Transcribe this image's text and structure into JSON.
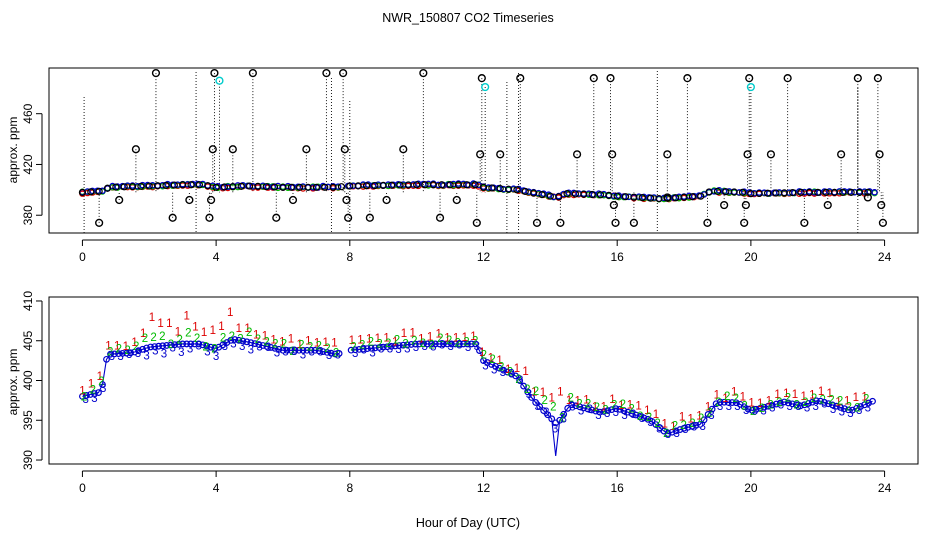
{
  "figure": {
    "title": "NWR_150807  CO2 Timeseries",
    "xlabel": "Hour of Day (UTC)"
  },
  "colors": {
    "axis": "#000000",
    "series1": "#dd0000",
    "series2": "#00bb00",
    "series3": "#0000cc",
    "flag": "#000000",
    "flag_alt": "#00cccc"
  },
  "chart_data": [
    {
      "type": "scatter",
      "panel": "top",
      "ylabel": "approx. ppm",
      "xlim": [
        -1,
        25
      ],
      "ylim": [
        366,
        496
      ],
      "xticks": [
        0,
        4,
        8,
        12,
        16,
        20,
        24
      ],
      "yticks": [
        380,
        420,
        460
      ],
      "xtick_labels": [
        "0",
        "4",
        "8",
        "12",
        "16",
        "20",
        "24"
      ],
      "ytick_labels": [
        "380",
        "420",
        "460"
      ],
      "series_base": [
        [
          0.0,
          398
        ],
        [
          0.6,
          399
        ],
        [
          0.8,
          402
        ],
        [
          2.0,
          403
        ],
        [
          3.0,
          404
        ],
        [
          3.6,
          404
        ],
        [
          4.0,
          402
        ],
        [
          5.0,
          403
        ],
        [
          6.0,
          402
        ],
        [
          7.5,
          402
        ],
        [
          8.0,
          403
        ],
        [
          10.0,
          404
        ],
        [
          11.8,
          404
        ],
        [
          12.0,
          402
        ],
        [
          13.0,
          400
        ],
        [
          13.6,
          397
        ],
        [
          14.2,
          394
        ],
        [
          14.5,
          397
        ],
        [
          15.6,
          396
        ],
        [
          16.0,
          395
        ],
        [
          17.3,
          393
        ],
        [
          18.5,
          395
        ],
        [
          18.8,
          399
        ],
        [
          19.8,
          398
        ],
        [
          20.0,
          397
        ],
        [
          21.5,
          398
        ],
        [
          23.7,
          398
        ]
      ],
      "flagged_points": [
        [
          0.5,
          374
        ],
        [
          1.1,
          392
        ],
        [
          1.6,
          432
        ],
        [
          2.2,
          492
        ],
        [
          2.7,
          378
        ],
        [
          3.2,
          392
        ],
        [
          3.8,
          378
        ],
        [
          3.85,
          392
        ],
        [
          3.9,
          432
        ],
        [
          3.95,
          492
        ],
        [
          4.1,
          486
        ],
        [
          4.5,
          432
        ],
        [
          5.1,
          492
        ],
        [
          5.8,
          378
        ],
        [
          6.3,
          392
        ],
        [
          6.7,
          432
        ],
        [
          7.3,
          492
        ],
        [
          7.8,
          492
        ],
        [
          7.85,
          432
        ],
        [
          7.9,
          392
        ],
        [
          7.95,
          378
        ],
        [
          8.6,
          378
        ],
        [
          9.1,
          392
        ],
        [
          9.6,
          432
        ],
        [
          10.2,
          492
        ],
        [
          10.7,
          378
        ],
        [
          11.2,
          392
        ],
        [
          11.8,
          374
        ],
        [
          11.9,
          428
        ],
        [
          11.95,
          488
        ],
        [
          12.05,
          481
        ],
        [
          12.5,
          428
        ],
        [
          13.1,
          488
        ],
        [
          13.6,
          374
        ],
        [
          14.3,
          374
        ],
        [
          14.8,
          428
        ],
        [
          15.3,
          488
        ],
        [
          15.8,
          488
        ],
        [
          15.85,
          428
        ],
        [
          15.9,
          388
        ],
        [
          15.95,
          374
        ],
        [
          16.5,
          374
        ],
        [
          17.5,
          428
        ],
        [
          17.5,
          394
        ],
        [
          18.1,
          488
        ],
        [
          18.7,
          374
        ],
        [
          19.2,
          388
        ],
        [
          19.8,
          374
        ],
        [
          19.85,
          388
        ],
        [
          19.9,
          428
        ],
        [
          19.95,
          488
        ],
        [
          20.0,
          481
        ],
        [
          20.6,
          428
        ],
        [
          21.1,
          488
        ],
        [
          21.6,
          374
        ],
        [
          22.3,
          388
        ],
        [
          22.7,
          428
        ],
        [
          23.2,
          488
        ],
        [
          23.5,
          394
        ],
        [
          23.8,
          488
        ],
        [
          23.85,
          428
        ],
        [
          23.9,
          388
        ],
        [
          23.95,
          374
        ]
      ]
    },
    {
      "type": "scatter",
      "panel": "bottom",
      "ylabel": "approx. ppm",
      "xlim": [
        -1,
        25
      ],
      "ylim": [
        389.5,
        410.5
      ],
      "xticks": [
        0,
        4,
        8,
        12,
        16,
        20,
        24
      ],
      "yticks": [
        390,
        395,
        400,
        405,
        410
      ],
      "xtick_labels": [
        "0",
        "4",
        "8",
        "12",
        "16",
        "20",
        "24"
      ],
      "ytick_labels": [
        "390",
        "395",
        "400",
        "405",
        "410"
      ],
      "series_names": [
        "1",
        "2",
        "3"
      ],
      "series_base": [
        [
          0.0,
          398.0
        ],
        [
          0.5,
          398.5
        ],
        [
          0.6,
          399.5
        ],
        [
          0.7,
          402.5
        ],
        [
          0.8,
          403.3
        ],
        [
          1.5,
          403.5
        ],
        [
          2.0,
          404.2
        ],
        [
          3.0,
          404.6
        ],
        [
          3.5,
          404.6
        ],
        [
          4.0,
          404.0
        ],
        [
          4.5,
          405.2
        ],
        [
          5.0,
          404.8
        ],
        [
          6.0,
          403.8
        ],
        [
          7.0,
          403.8
        ],
        [
          7.6,
          403.3
        ],
        [
          8.0,
          403.8
        ],
        [
          10.0,
          404.6
        ],
        [
          11.8,
          404.6
        ],
        [
          12.0,
          402.5
        ],
        [
          13.0,
          400.5
        ],
        [
          13.5,
          397.5
        ],
        [
          14.2,
          394.5
        ],
        [
          14.6,
          397.0
        ],
        [
          15.5,
          396.0
        ],
        [
          16.0,
          396.5
        ],
        [
          17.0,
          395.0
        ],
        [
          17.5,
          393.3
        ],
        [
          18.0,
          394.0
        ],
        [
          18.5,
          394.5
        ],
        [
          19.0,
          397.3
        ],
        [
          19.6,
          397.2
        ],
        [
          20.0,
          396.2
        ],
        [
          21.0,
          397.3
        ],
        [
          21.5,
          396.8
        ],
        [
          22.0,
          397.5
        ],
        [
          23.0,
          396.2
        ],
        [
          23.7,
          397.5
        ]
      ]
    }
  ]
}
